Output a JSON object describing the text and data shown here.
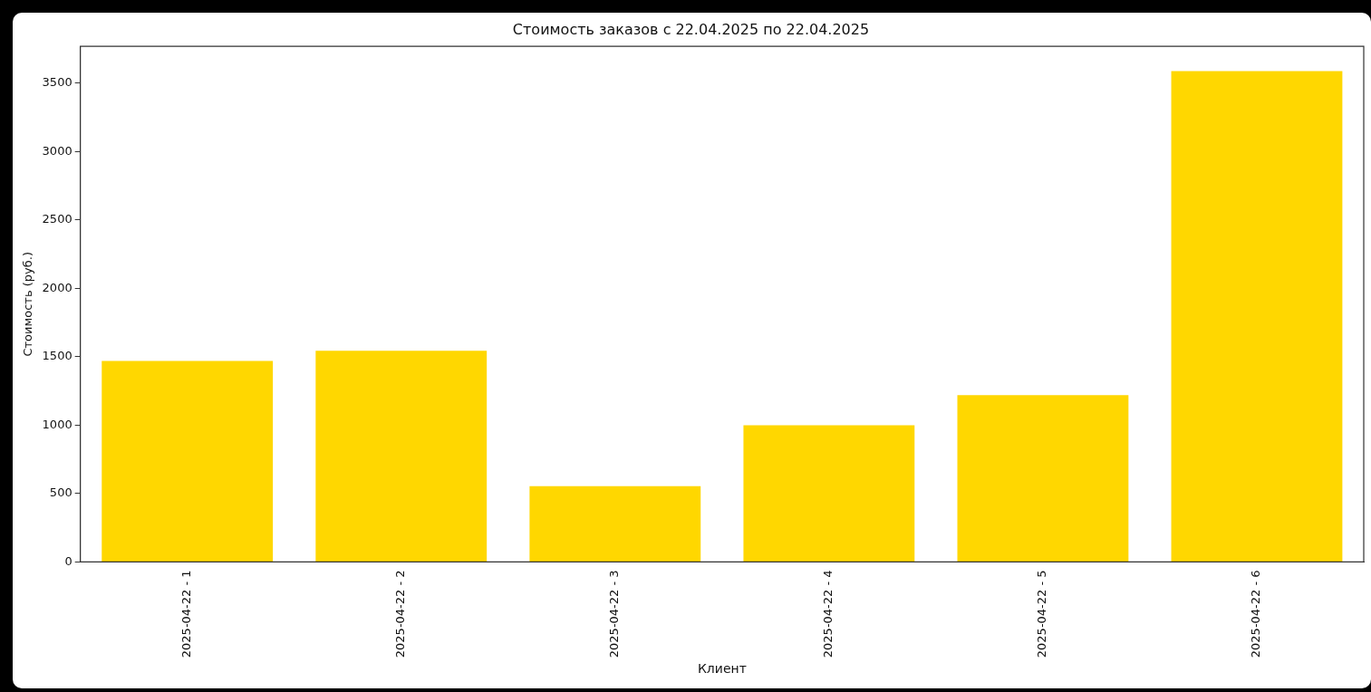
{
  "chart_data": {
    "type": "bar",
    "title": "Стоимость заказов с 22.04.2025 по 22.04.2025",
    "xlabel": "Клиент",
    "ylabel": "Стоимость (руб.)",
    "categories": [
      "2025-04-22 - 1",
      "2025-04-22 - 2",
      "2025-04-22 - 3",
      "2025-04-22 - 4",
      "2025-04-22 - 5",
      "2025-04-22 - 6"
    ],
    "values": [
      1470,
      1545,
      555,
      1000,
      1220,
      3590
    ],
    "color": "#ffd700",
    "ylim": [
      0,
      3770
    ],
    "yticks": [
      0,
      500,
      1000,
      1500,
      2000,
      2500,
      3000,
      3500
    ],
    "grid": false,
    "legend": false
  }
}
